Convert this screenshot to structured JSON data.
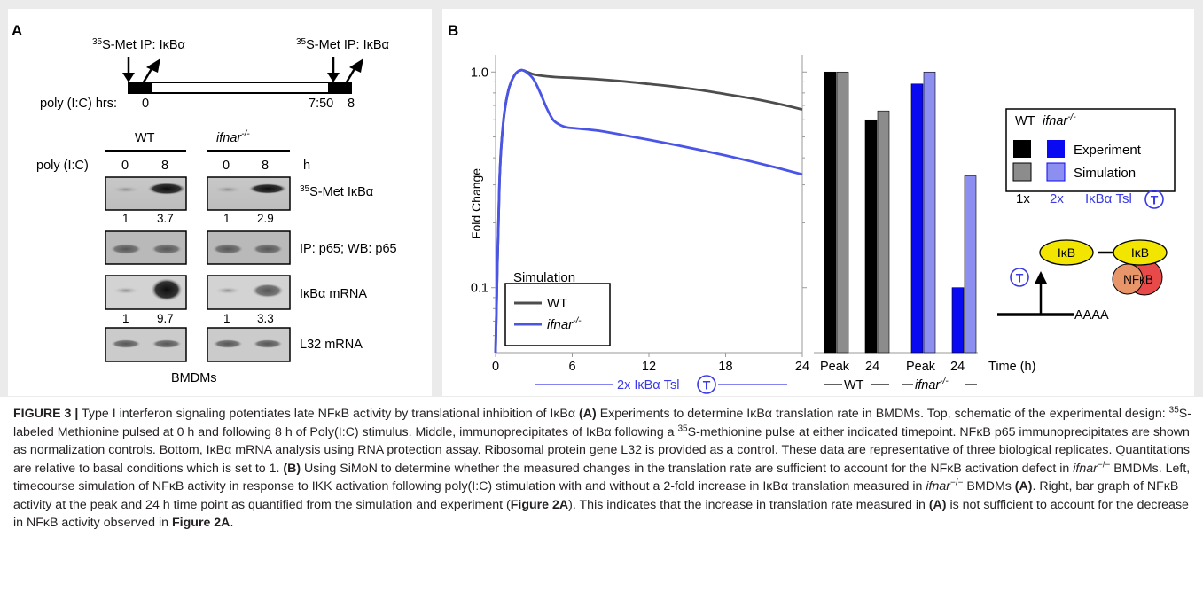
{
  "panelA": {
    "label": "A",
    "pulse_label": "35S-Met IP: IκBα",
    "pulse_sup": "35",
    "pulse_rest": "S-Met IP: IκBα",
    "timeline_label": "poly (I:C) hrs:",
    "time_0": "0",
    "time_750": "7:50",
    "time_8": "8",
    "wt_header": "WT",
    "ko_header_main": "ifnar",
    "ko_header_sup": "-/-",
    "row_label": "poly (I:C)",
    "lane_0": "0",
    "lane_8": "8",
    "unit_h": "h",
    "blots": [
      {
        "label_sup": "35",
        "label": "S-Met IκBα",
        "wt_quant": [
          "1",
          "3.7"
        ],
        "ko_quant": [
          "1",
          "2.9"
        ]
      },
      {
        "label_sup": "",
        "label": "IP: p65; WB: p65",
        "wt_quant": [],
        "ko_quant": []
      },
      {
        "label_sup": "",
        "label": "IκBα mRNA",
        "wt_quant": [
          "1",
          "9.7"
        ],
        "ko_quant": [
          "1",
          "3.3"
        ]
      },
      {
        "label_sup": "",
        "label": "L32 mRNA",
        "wt_quant": [],
        "ko_quant": []
      }
    ],
    "footer": "BMDMs"
  },
  "panelB": {
    "label": "B",
    "ylabel": "Fold Change",
    "xlabel": "Time (h)",
    "x_under_label": "2x IκBα Tsl",
    "t_symbol": "T",
    "legend_title": "Simulation",
    "legend_wt": "WT",
    "legend_ko_main": "ifnar",
    "legend_ko_sup": "-/-",
    "bar_ticks": [
      "Peak",
      "24",
      "Peak",
      "24"
    ],
    "group_wt": "WT",
    "group_ko_main": "ifnar",
    "group_ko_sup": "-/-",
    "key": {
      "wt": "WT",
      "ko_main": "ifnar",
      "ko_sup": "-/-",
      "experiment": "Experiment",
      "simulation": "Simulation",
      "mult_1x": "1x",
      "mult_2x": "2x",
      "tsl": "IκBα Tsl",
      "t_symbol": "T"
    },
    "schematic": {
      "ikb": "IκB",
      "nfkb": "NFκB",
      "aaaa": "AAAA",
      "t_symbol": "T"
    }
  },
  "chart_data": [
    {
      "type": "line",
      "title": "",
      "xlabel": "",
      "ylabel": "Fold Change",
      "y_scale": "log",
      "xlim": [
        0,
        24
      ],
      "ylim": [
        0.05,
        1.2
      ],
      "x_ticks": [
        "0",
        "6",
        "12",
        "18",
        "24"
      ],
      "y_ticks": [
        "1.0",
        "0.1"
      ],
      "legend_placement": "bottom-left",
      "series": [
        {
          "name": "WT",
          "color": "#4d4d4d",
          "x": [
            0,
            0.3,
            0.6,
            1.0,
            1.5,
            2.0,
            2.5,
            3.0,
            4.0,
            5.0,
            6.0,
            8.0,
            10.0,
            12.0,
            14.0,
            16.0,
            18.0,
            20.0,
            22.0,
            24.0
          ],
          "y": [
            0.05,
            0.3,
            0.58,
            0.82,
            0.97,
            1.02,
            1.0,
            0.975,
            0.955,
            0.945,
            0.94,
            0.925,
            0.905,
            0.88,
            0.855,
            0.825,
            0.79,
            0.755,
            0.715,
            0.67
          ]
        },
        {
          "name": "ifnar-/-",
          "color": "#4a55e8",
          "x": [
            0,
            0.3,
            0.6,
            1.0,
            1.5,
            2.0,
            2.5,
            3.0,
            3.5,
            4.0,
            4.5,
            5.0,
            5.5,
            6.0,
            8.0,
            10.0,
            12.0,
            14.0,
            16.0,
            18.0,
            20.0,
            22.0,
            24.0
          ],
          "y": [
            0.05,
            0.3,
            0.58,
            0.82,
            0.97,
            1.02,
            0.99,
            0.92,
            0.8,
            0.68,
            0.6,
            0.57,
            0.555,
            0.55,
            0.535,
            0.51,
            0.485,
            0.46,
            0.435,
            0.41,
            0.385,
            0.36,
            0.335
          ]
        }
      ]
    },
    {
      "type": "bar",
      "title": "",
      "y_scale": "log",
      "ylim": [
        0.05,
        1.2
      ],
      "categories": [
        "Peak WT",
        "24 WT",
        "Peak ifnar-/-",
        "24 ifnar-/-"
      ],
      "series": [
        {
          "name": "Experiment",
          "values": [
            1.0,
            0.6,
            0.88,
            0.1
          ],
          "colors": [
            "#000000",
            "#000000",
            "#0a0af2",
            "#0a0af2"
          ]
        },
        {
          "name": "Simulation",
          "values": [
            1.0,
            0.66,
            1.0,
            0.33
          ],
          "colors": [
            "#8c8c8c",
            "#8c8c8c",
            "#8c8ef0",
            "#8c8ef0"
          ]
        }
      ]
    }
  ],
  "caption": {
    "fig_label": "FIGURE 3 |",
    "s1": " Type I interferon signaling potentiates late NFκB activity by translational inhibition of IκBα ",
    "a1": "(A)",
    "s2": " Experiments to determine IκBα translation rate in BMDMs. Top, schematic of the experimental design: ",
    "sup35a": "35",
    "s3": "S-labeled Methionine pulsed at 0 h and following 8 h of Poly(I:C) stimulus. Middle, immunoprecipitates of IκBα following a ",
    "sup35b": "35",
    "s4": "S-methionine pulse at either indicated timepoint. NFκB p65 immunoprecipitates are shown as normalization controls. Bottom, IκBα mRNA analysis using RNA protection assay. Ribosomal protein gene L32 is provided as a control. These data are representative of three biological replicates. Quantitations are relative to basal conditions which is set to 1. ",
    "b1": "(B)",
    "s5": " Using SiMoN to determine whether the measured changes in the translation rate are sufficient to account for the NFκB activation defect in ",
    "ko1": "ifnar",
    "ko1sup": "−/−",
    "s6": " BMDMs. Left, timecourse simulation of NFκB activity in response to IKK activation following poly(I:C) stimulation with and without a 2-fold increase in IκBα translation measured in ",
    "ko2": "ifnar",
    "ko2sup": "−/−",
    "s7": " BMDMs ",
    "a2": "(A)",
    "s8": ". Right, bar graph of NFκB activity at the peak and 24 h time point as quantified from the simulation and experiment (",
    "f2a": "Figure 2A",
    "s9": "). This indicates that the increase in translation rate measured in ",
    "a3": "(A)",
    "s10": " is not sufficient to account for the decrease in NFκB activity observed in ",
    "f2b": "Figure 2A",
    "s11": "."
  }
}
